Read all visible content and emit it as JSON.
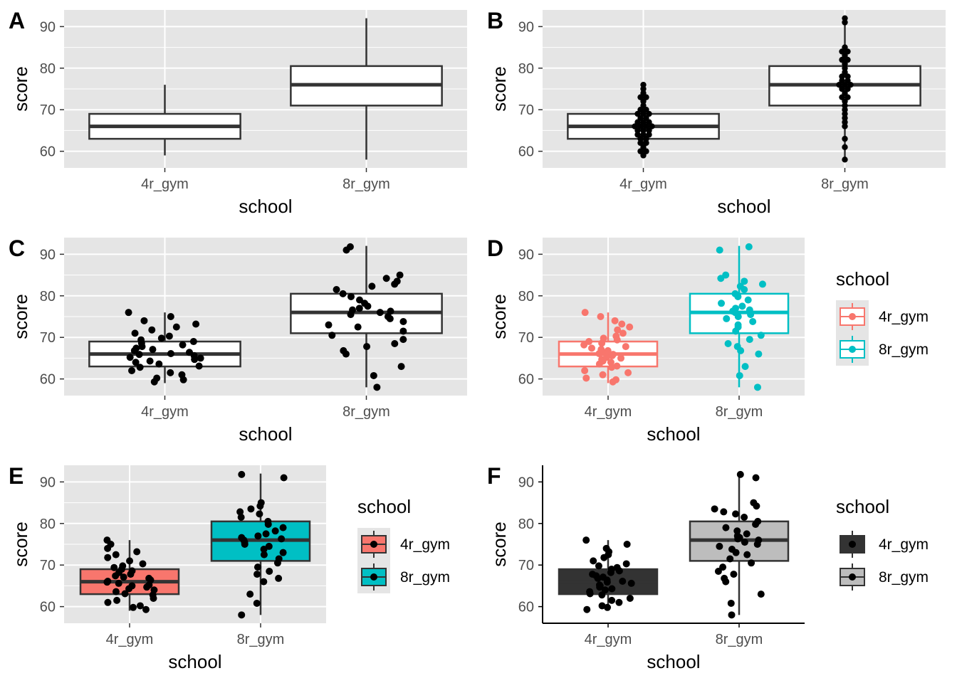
{
  "colors": {
    "panel_bg": "#e5e5e5",
    "grid": "#ffffff",
    "box_line": "#333333",
    "point": "#000000",
    "group1": "#f8766d",
    "group2": "#00bfc4",
    "gray_dark": "#333333",
    "gray_light": "#bdbdbd"
  },
  "chart_data": [
    {
      "panel": "A",
      "type": "box",
      "xlabel": "school",
      "ylabel": "score",
      "categories": [
        "4r_gym",
        "8r_gym"
      ],
      "yticks": [
        60,
        70,
        80,
        90
      ],
      "ylim": [
        56,
        94
      ],
      "boxes": [
        {
          "min": 59,
          "q1": 63,
          "median": 66,
          "q3": 69,
          "max": 76
        },
        {
          "min": 58,
          "q1": 71,
          "median": 76,
          "q3": 80.5,
          "max": 92
        }
      ],
      "points": "none",
      "fill": "none",
      "theme": "gray",
      "legend": null
    },
    {
      "panel": "B",
      "type": "box",
      "xlabel": "school",
      "ylabel": "score",
      "categories": [
        "4r_gym",
        "8r_gym"
      ],
      "yticks": [
        60,
        70,
        80,
        90
      ],
      "ylim": [
        56,
        94
      ],
      "boxes": [
        {
          "min": 59,
          "q1": 63,
          "median": 66,
          "q3": 69,
          "max": 76
        },
        {
          "min": 58,
          "q1": 71,
          "median": 76,
          "q3": 80.5,
          "max": 92
        }
      ],
      "points": "dot",
      "fill": "none",
      "theme": "gray",
      "legend": null
    },
    {
      "panel": "C",
      "type": "box",
      "xlabel": "school",
      "ylabel": "score",
      "categories": [
        "4r_gym",
        "8r_gym"
      ],
      "yticks": [
        60,
        70,
        80,
        90
      ],
      "ylim": [
        56,
        94
      ],
      "boxes": [
        {
          "min": 59,
          "q1": 63,
          "median": 66,
          "q3": 69,
          "max": 76
        },
        {
          "min": 58,
          "q1": 71,
          "median": 76,
          "q3": 80.5,
          "max": 92
        }
      ],
      "points": "jitter",
      "fill": "none",
      "theme": "gray",
      "legend": null
    },
    {
      "panel": "D",
      "type": "box",
      "xlabel": "school",
      "ylabel": "score",
      "categories": [
        "4r_gym",
        "8r_gym"
      ],
      "yticks": [
        60,
        70,
        80,
        90
      ],
      "ylim": [
        56,
        94
      ],
      "boxes": [
        {
          "min": 59,
          "q1": 63,
          "median": 66,
          "q3": 69,
          "max": 76
        },
        {
          "min": 58,
          "q1": 71,
          "median": 76,
          "q3": 80.5,
          "max": 92
        }
      ],
      "points": "jitter",
      "fill": "none",
      "color_by_group": true,
      "theme": "gray",
      "legend": {
        "title": "school",
        "entries": [
          "4r_gym",
          "8r_gym"
        ]
      }
    },
    {
      "panel": "E",
      "type": "box",
      "xlabel": "school",
      "ylabel": "score",
      "categories": [
        "4r_gym",
        "8r_gym"
      ],
      "yticks": [
        60,
        70,
        80,
        90
      ],
      "ylim": [
        56,
        94
      ],
      "boxes": [
        {
          "min": 59,
          "q1": 63,
          "median": 66,
          "q3": 69,
          "max": 76
        },
        {
          "min": 58,
          "q1": 71,
          "median": 76,
          "q3": 80.5,
          "max": 92
        }
      ],
      "points": "jitter",
      "fill": "group",
      "theme": "gray",
      "legend": {
        "title": "school",
        "entries": [
          "4r_gym",
          "8r_gym"
        ]
      }
    },
    {
      "panel": "F",
      "type": "box",
      "xlabel": "school",
      "ylabel": "score",
      "categories": [
        "4r_gym",
        "8r_gym"
      ],
      "yticks": [
        60,
        70,
        80,
        90
      ],
      "ylim": [
        56,
        94
      ],
      "boxes": [
        {
          "min": 59,
          "q1": 63,
          "median": 66,
          "q3": 69,
          "max": 76
        },
        {
          "min": 58,
          "q1": 71,
          "median": 76,
          "q3": 80.5,
          "max": 92
        }
      ],
      "points": "jitter",
      "fill": "gray",
      "theme": "classic",
      "legend": {
        "title": "school",
        "entries": [
          "4r_gym",
          "8r_gym"
        ]
      }
    }
  ],
  "observations": {
    "4r_gym": [
      59.3,
      59.8,
      60.2,
      61.0,
      61.5,
      62.0,
      62.8,
      63.1,
      63.6,
      64.0,
      64.3,
      64.7,
      65.0,
      65.2,
      65.6,
      65.9,
      66.1,
      66.4,
      66.8,
      67.1,
      67.4,
      67.8,
      68.2,
      68.6,
      69.0,
      69.4,
      69.8,
      70.3,
      71.0,
      71.8,
      72.5,
      73.2,
      74.0,
      75.0,
      76.0
    ],
    "8r_gym": [
      58.0,
      60.8,
      63.0,
      66.0,
      66.8,
      67.8,
      68.5,
      69.5,
      70.5,
      71.5,
      72.5,
      73.0,
      73.8,
      74.5,
      75.0,
      75.5,
      76.0,
      76.3,
      76.6,
      77.0,
      77.5,
      78.2,
      79.0,
      79.8,
      80.5,
      81.5,
      82.3,
      82.8,
      83.5,
      84.2,
      85.0,
      91.0,
      91.8
    ]
  }
}
